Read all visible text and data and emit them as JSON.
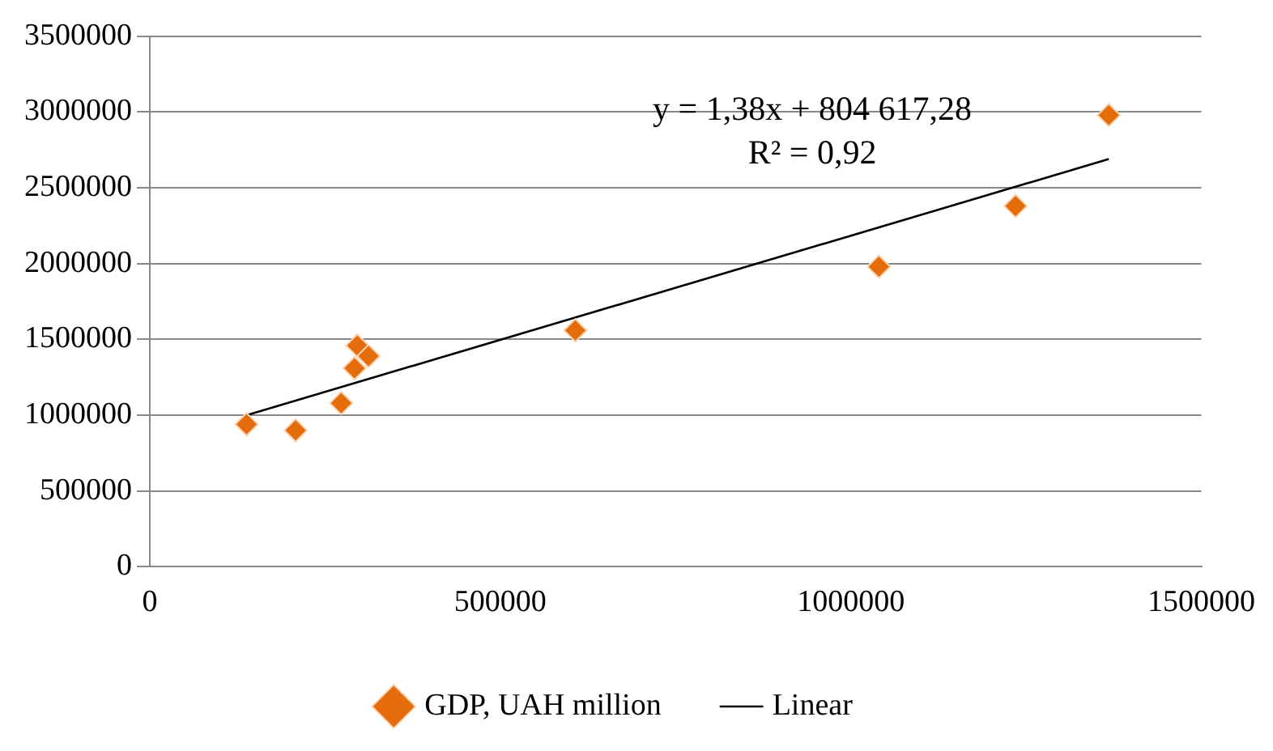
{
  "chart_data": {
    "type": "scatter",
    "series": [
      {
        "name": "GDP, UAH million",
        "type": "scatter",
        "color": "#e46c0a",
        "marker": "diamond",
        "x": [
          138000,
          208000,
          273000,
          292000,
          296000,
          312000,
          607000,
          1040000,
          1235000,
          1368000
        ],
        "values": [
          940000,
          900000,
          1080000,
          1310000,
          1460000,
          1390000,
          1560000,
          1980000,
          2380000,
          2980000
        ]
      },
      {
        "name": "Linear",
        "type": "line",
        "color": "#000000",
        "marker": "none",
        "line_style": "solid",
        "x": [
          138000,
          1368000
        ],
        "values": [
          1000000,
          2690000
        ]
      }
    ],
    "annotations": [
      "y = 1,38x + 804 617,28",
      "R² = 0,92"
    ],
    "xlim": [
      0,
      1500000
    ],
    "xticks": [
      0,
      500000,
      1000000,
      1500000
    ],
    "ylim": [
      0,
      3500000
    ],
    "yticks": [
      0,
      500000,
      1000000,
      1500000,
      2000000,
      2500000,
      3000000,
      3500000
    ],
    "grid": "y",
    "legend": "bottom"
  }
}
